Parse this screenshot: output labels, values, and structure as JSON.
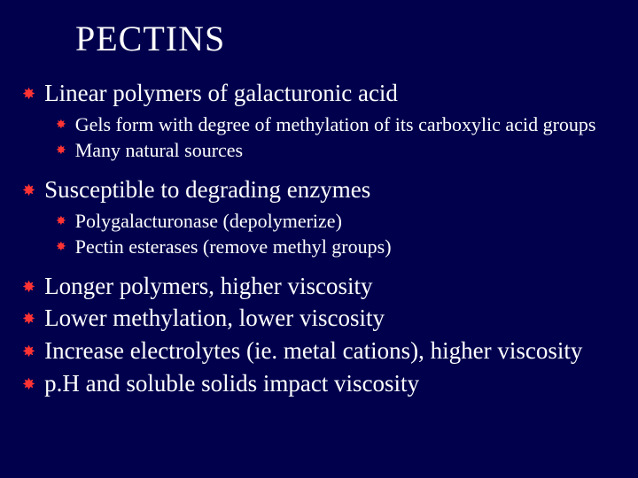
{
  "colors": {
    "background": "#00004d",
    "text": "#ffffff",
    "bullet": "#ff3333",
    "title": "#fdfdfd"
  },
  "typography": {
    "family": "Georgia, Times New Roman, serif",
    "title_fontsize": 40,
    "l1_fontsize": 27,
    "l2_fontsize": 22
  },
  "bullet_glyph": "✸",
  "slide": {
    "title": "PECTINS",
    "groups": [
      {
        "l1": "Linear polymers of galacturonic acid",
        "l2": [
          "Gels form with degree of methylation of its carboxylic acid groups",
          "Many natural sources"
        ]
      },
      {
        "l1": "Susceptible to degrading enzymes",
        "l2": [
          "Polygalacturonase (depolymerize)",
          "Pectin esterases (remove methyl groups)"
        ]
      }
    ],
    "tail": [
      "Longer polymers, higher viscosity",
      "Lower methylation, lower viscosity",
      "Increase electrolytes (ie. metal cations), higher viscosity",
      "p.H and soluble solids impact viscosity"
    ]
  }
}
